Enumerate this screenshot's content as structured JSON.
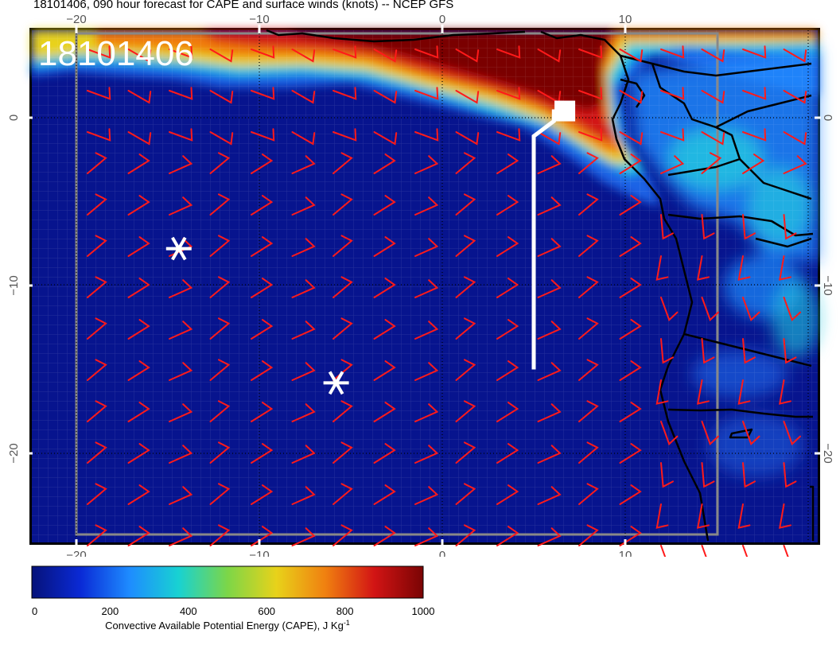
{
  "title": "18101406, 090 hour forecast for CAPE and surface winds (knots) -- NCEP GFS",
  "stamp": "18101406",
  "map": {
    "lon_range": [
      -22.5,
      19.5
    ],
    "lat_range": [
      -25.5,
      5.0
    ],
    "x_ticks": [
      {
        "value": -20,
        "label": "−20"
      },
      {
        "value": -10,
        "label": "−10"
      },
      {
        "value": 0,
        "label": "0"
      },
      {
        "value": 10,
        "label": "10"
      }
    ],
    "y_ticks": [
      {
        "value": 0,
        "label": "0"
      },
      {
        "value": -10,
        "label": "−10"
      },
      {
        "value": -20,
        "label": "−20"
      }
    ],
    "gridlines": "dotted",
    "colors": {
      "ocean": "#07148e",
      "coast": "#000000",
      "barb": "#ff1a1a",
      "track": "#ffffff"
    },
    "markers": [
      {
        "name": "star-marker",
        "lon": -14.4,
        "lat": -7.8,
        "icon": "asterisk-icon"
      },
      {
        "name": "star-marker",
        "lon": -5.8,
        "lat": -15.8,
        "icon": "asterisk-icon"
      }
    ],
    "track": {
      "points": [
        [
          5,
          -15
        ],
        [
          5,
          -1.1
        ],
        [
          6.1,
          -0.2
        ],
        [
          6.1,
          0.5
        ]
      ],
      "end_box": [
        6.7,
        0.4
      ]
    }
  },
  "colorbar": {
    "ticks": [
      "0",
      "200",
      "400",
      "600",
      "800",
      "1000"
    ],
    "label": "Convective Available Potential Energy (CAPE), J Kg",
    "label_sup": "-1",
    "stops": [
      "#06127a",
      "#0a2ad6",
      "#1e8cff",
      "#18d2d2",
      "#7cd648",
      "#e8d21a",
      "#f08010",
      "#d21414",
      "#7a0404"
    ]
  }
}
